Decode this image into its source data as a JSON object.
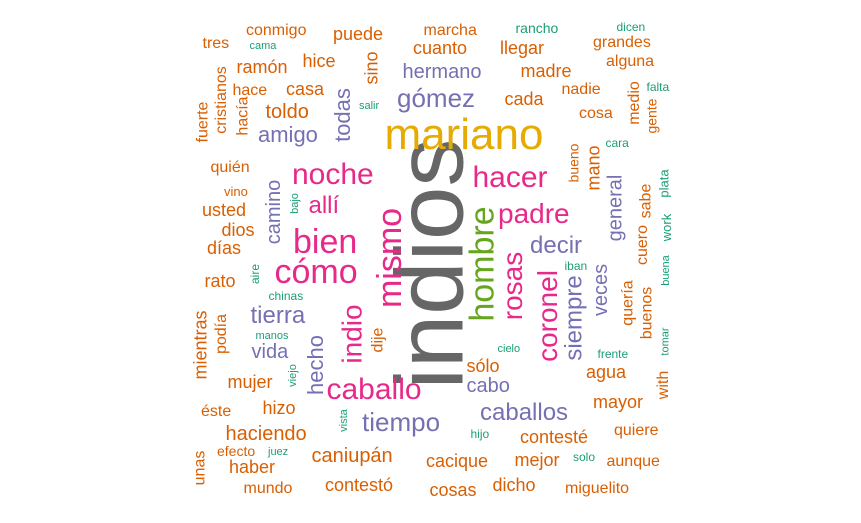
{
  "colors": {
    "gray": "#666666",
    "gold": "#E6AB02",
    "magenta": "#E7298A",
    "green": "#66A61E",
    "purple": "#7570B3",
    "orange": "#D95F02",
    "teal": "#1B9E77"
  },
  "words": [
    {
      "id": "w0",
      "text": "indios",
      "color": "gray"
    },
    {
      "id": "w1",
      "text": "mariano",
      "color": "gold"
    },
    {
      "id": "w2",
      "text": "hombre",
      "color": "green"
    },
    {
      "id": "w3",
      "text": "mismo",
      "color": "magenta"
    },
    {
      "id": "w4",
      "text": "rosas",
      "color": "magenta"
    },
    {
      "id": "w5",
      "text": "coronel",
      "color": "magenta"
    },
    {
      "id": "w6",
      "text": "cómo",
      "color": "magenta"
    },
    {
      "id": "w7",
      "text": "bien",
      "color": "magenta"
    },
    {
      "id": "w8",
      "text": "noche",
      "color": "magenta"
    },
    {
      "id": "w9",
      "text": "hacer",
      "color": "magenta"
    },
    {
      "id": "w10",
      "text": "padre",
      "color": "magenta"
    },
    {
      "id": "w11",
      "text": "caballo",
      "color": "magenta"
    },
    {
      "id": "w12",
      "text": "indio",
      "color": "magenta"
    },
    {
      "id": "w13",
      "text": "allí",
      "color": "magenta"
    },
    {
      "id": "w14",
      "text": "tiempo",
      "color": "purple"
    },
    {
      "id": "w15",
      "text": "caballos",
      "color": "purple"
    },
    {
      "id": "w16",
      "text": "gómez",
      "color": "purple"
    },
    {
      "id": "w17",
      "text": "tierra",
      "color": "purple"
    },
    {
      "id": "w18",
      "text": "hermano",
      "color": "purple"
    },
    {
      "id": "w19",
      "text": "todas",
      "color": "purple"
    },
    {
      "id": "w20",
      "text": "decir",
      "color": "purple"
    },
    {
      "id": "w21",
      "text": "siempre",
      "color": "purple"
    },
    {
      "id": "w22",
      "text": "amigo",
      "color": "purple"
    },
    {
      "id": "w23",
      "text": "cabo",
      "color": "purple"
    },
    {
      "id": "w24",
      "text": "hecho",
      "color": "purple"
    },
    {
      "id": "w25",
      "text": "camino",
      "color": "purple"
    },
    {
      "id": "w26",
      "text": "veces",
      "color": "purple"
    },
    {
      "id": "w27",
      "text": "general",
      "color": "purple"
    },
    {
      "id": "w28",
      "text": "vida",
      "color": "purple"
    },
    {
      "id": "w29",
      "text": "caniupán",
      "color": "orange"
    },
    {
      "id": "w30",
      "text": "cacique",
      "color": "orange"
    },
    {
      "id": "w31",
      "text": "contesté",
      "color": "orange"
    },
    {
      "id": "w32",
      "text": "contestó",
      "color": "orange"
    },
    {
      "id": "w33",
      "text": "cosas",
      "color": "orange"
    },
    {
      "id": "w34",
      "text": "dicho",
      "color": "orange"
    },
    {
      "id": "w35",
      "text": "miguelito",
      "color": "orange"
    },
    {
      "id": "w36",
      "text": "mejor",
      "color": "orange"
    },
    {
      "id": "w37",
      "text": "aunque",
      "color": "orange"
    },
    {
      "id": "w38",
      "text": "quiere",
      "color": "orange"
    },
    {
      "id": "w39",
      "text": "mayor",
      "color": "orange"
    },
    {
      "id": "w40",
      "text": "agua",
      "color": "orange"
    },
    {
      "id": "w41",
      "text": "with",
      "color": "orange"
    },
    {
      "id": "w42",
      "text": "sólo",
      "color": "orange"
    },
    {
      "id": "w43",
      "text": "dije",
      "color": "orange"
    },
    {
      "id": "w44",
      "text": "haciendo",
      "color": "orange"
    },
    {
      "id": "w45",
      "text": "haber",
      "color": "orange"
    },
    {
      "id": "w46",
      "text": "mundo",
      "color": "orange"
    },
    {
      "id": "w47",
      "text": "unas",
      "color": "orange"
    },
    {
      "id": "w48",
      "text": "efecto",
      "color": "orange"
    },
    {
      "id": "w49",
      "text": "hizo",
      "color": "orange"
    },
    {
      "id": "w50",
      "text": "éste",
      "color": "orange"
    },
    {
      "id": "w51",
      "text": "mujer",
      "color": "orange"
    },
    {
      "id": "w52",
      "text": "mientras",
      "color": "orange"
    },
    {
      "id": "w53",
      "text": "podía",
      "color": "orange"
    },
    {
      "id": "w54",
      "text": "rato",
      "color": "orange"
    },
    {
      "id": "w55",
      "text": "días",
      "color": "orange"
    },
    {
      "id": "w56",
      "text": "dios",
      "color": "orange"
    },
    {
      "id": "w57",
      "text": "usted",
      "color": "orange"
    },
    {
      "id": "w58",
      "text": "vino",
      "color": "orange"
    },
    {
      "id": "w59",
      "text": "quién",
      "color": "orange"
    },
    {
      "id": "w60",
      "text": "fuerte",
      "color": "orange"
    },
    {
      "id": "w61",
      "text": "cristianos",
      "color": "orange"
    },
    {
      "id": "w62",
      "text": "hacía",
      "color": "orange"
    },
    {
      "id": "w63",
      "text": "hace",
      "color": "orange"
    },
    {
      "id": "w64",
      "text": "casa",
      "color": "orange"
    },
    {
      "id": "w65",
      "text": "toldo",
      "color": "orange"
    },
    {
      "id": "w66",
      "text": "ramón",
      "color": "orange"
    },
    {
      "id": "w67",
      "text": "tres",
      "color": "orange"
    },
    {
      "id": "w68",
      "text": "conmigo",
      "color": "orange"
    },
    {
      "id": "w69",
      "text": "hice",
      "color": "orange"
    },
    {
      "id": "w70",
      "text": "puede",
      "color": "orange"
    },
    {
      "id": "w71",
      "text": "sino",
      "color": "orange"
    },
    {
      "id": "w72",
      "text": "marcha",
      "color": "orange"
    },
    {
      "id": "w73",
      "text": "cuanto",
      "color": "orange"
    },
    {
      "id": "w74",
      "text": "llegar",
      "color": "orange"
    },
    {
      "id": "w75",
      "text": "madre",
      "color": "orange"
    },
    {
      "id": "w76",
      "text": "cada",
      "color": "orange"
    },
    {
      "id": "w77",
      "text": "nadie",
      "color": "orange"
    },
    {
      "id": "w78",
      "text": "cosa",
      "color": "orange"
    },
    {
      "id": "w79",
      "text": "grandes",
      "color": "orange"
    },
    {
      "id": "w80",
      "text": "alguna",
      "color": "orange"
    },
    {
      "id": "w81",
      "text": "medio",
      "color": "orange"
    },
    {
      "id": "w82",
      "text": "gente",
      "color": "orange"
    },
    {
      "id": "w83",
      "text": "mano",
      "color": "orange"
    },
    {
      "id": "w84",
      "text": "bueno",
      "color": "orange"
    },
    {
      "id": "w85",
      "text": "sabe",
      "color": "orange"
    },
    {
      "id": "w86",
      "text": "cuero",
      "color": "orange"
    },
    {
      "id": "w87",
      "text": "quería",
      "color": "orange"
    },
    {
      "id": "w88",
      "text": "buenos",
      "color": "orange"
    },
    {
      "id": "w89",
      "text": "rancho",
      "color": "teal"
    },
    {
      "id": "w90",
      "text": "dicen",
      "color": "teal"
    },
    {
      "id": "w91",
      "text": "cama",
      "color": "teal"
    },
    {
      "id": "w92",
      "text": "falta",
      "color": "teal"
    },
    {
      "id": "w93",
      "text": "salir",
      "color": "teal"
    },
    {
      "id": "w94",
      "text": "cara",
      "color": "teal"
    },
    {
      "id": "w95",
      "text": "plata",
      "color": "teal"
    },
    {
      "id": "w96",
      "text": "work",
      "color": "teal"
    },
    {
      "id": "w97",
      "text": "bajo",
      "color": "teal"
    },
    {
      "id": "w98",
      "text": "aire",
      "color": "teal"
    },
    {
      "id": "w99",
      "text": "iban",
      "color": "teal"
    },
    {
      "id": "w100",
      "text": "buena",
      "color": "teal"
    },
    {
      "id": "w101",
      "text": "tomar",
      "color": "teal"
    },
    {
      "id": "w102",
      "text": "chinas",
      "color": "teal"
    },
    {
      "id": "w103",
      "text": "manos",
      "color": "teal"
    },
    {
      "id": "w104",
      "text": "viejo",
      "color": "teal"
    },
    {
      "id": "w105",
      "text": "cielo",
      "color": "teal"
    },
    {
      "id": "w106",
      "text": "frente",
      "color": "teal"
    },
    {
      "id": "w107",
      "text": "vista",
      "color": "teal"
    },
    {
      "id": "w108",
      "text": "hijo",
      "color": "teal"
    },
    {
      "id": "w109",
      "text": "juez",
      "color": "teal"
    },
    {
      "id": "w110",
      "text": "solo",
      "color": "teal"
    }
  ]
}
